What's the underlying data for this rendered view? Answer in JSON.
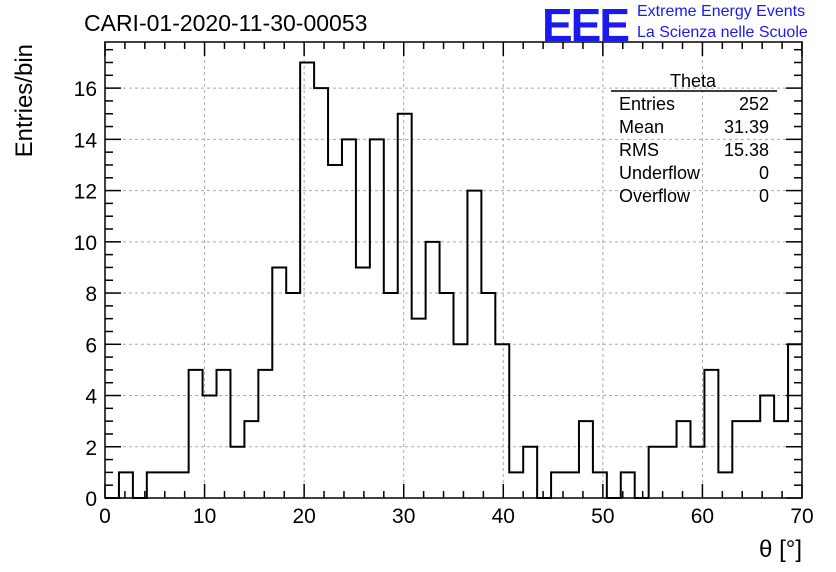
{
  "header": {
    "run_title": "CARI-01-2020-11-30-00053"
  },
  "logo": {
    "mark": "EEE",
    "line1": "Extreme Energy Events",
    "line2": "La Scienza nelle Scuole",
    "color": "#1a1aee"
  },
  "stats": {
    "name": "Theta",
    "rows": [
      {
        "label": "Entries",
        "value": "252"
      },
      {
        "label": "Mean",
        "value": "31.39"
      },
      {
        "label": "RMS",
        "value": "15.38"
      },
      {
        "label": "Underflow",
        "value": "0"
      },
      {
        "label": "Overflow",
        "value": "0"
      }
    ]
  },
  "chart_data": {
    "type": "histogram",
    "xlabel": "θ [°]",
    "ylabel": "Entries/bin",
    "xlim": [
      0,
      70
    ],
    "ylim": [
      0,
      17.8
    ],
    "bin_width": 1.4,
    "x_ticks": [
      0,
      10,
      20,
      30,
      40,
      50,
      60,
      70
    ],
    "y_ticks": [
      0,
      2,
      4,
      6,
      8,
      10,
      12,
      14,
      16
    ],
    "grid": true,
    "bin_counts": [
      0,
      1,
      0,
      1,
      1,
      1,
      5,
      4,
      5,
      2,
      3,
      5,
      9,
      8,
      17,
      16,
      13,
      14,
      9,
      14,
      8,
      15,
      7,
      10,
      8,
      6,
      12,
      8,
      6,
      1,
      2,
      0,
      1,
      1,
      3,
      1,
      0,
      1,
      0,
      2,
      2,
      3,
      2,
      5,
      1,
      3,
      3,
      4,
      3,
      6
    ]
  }
}
